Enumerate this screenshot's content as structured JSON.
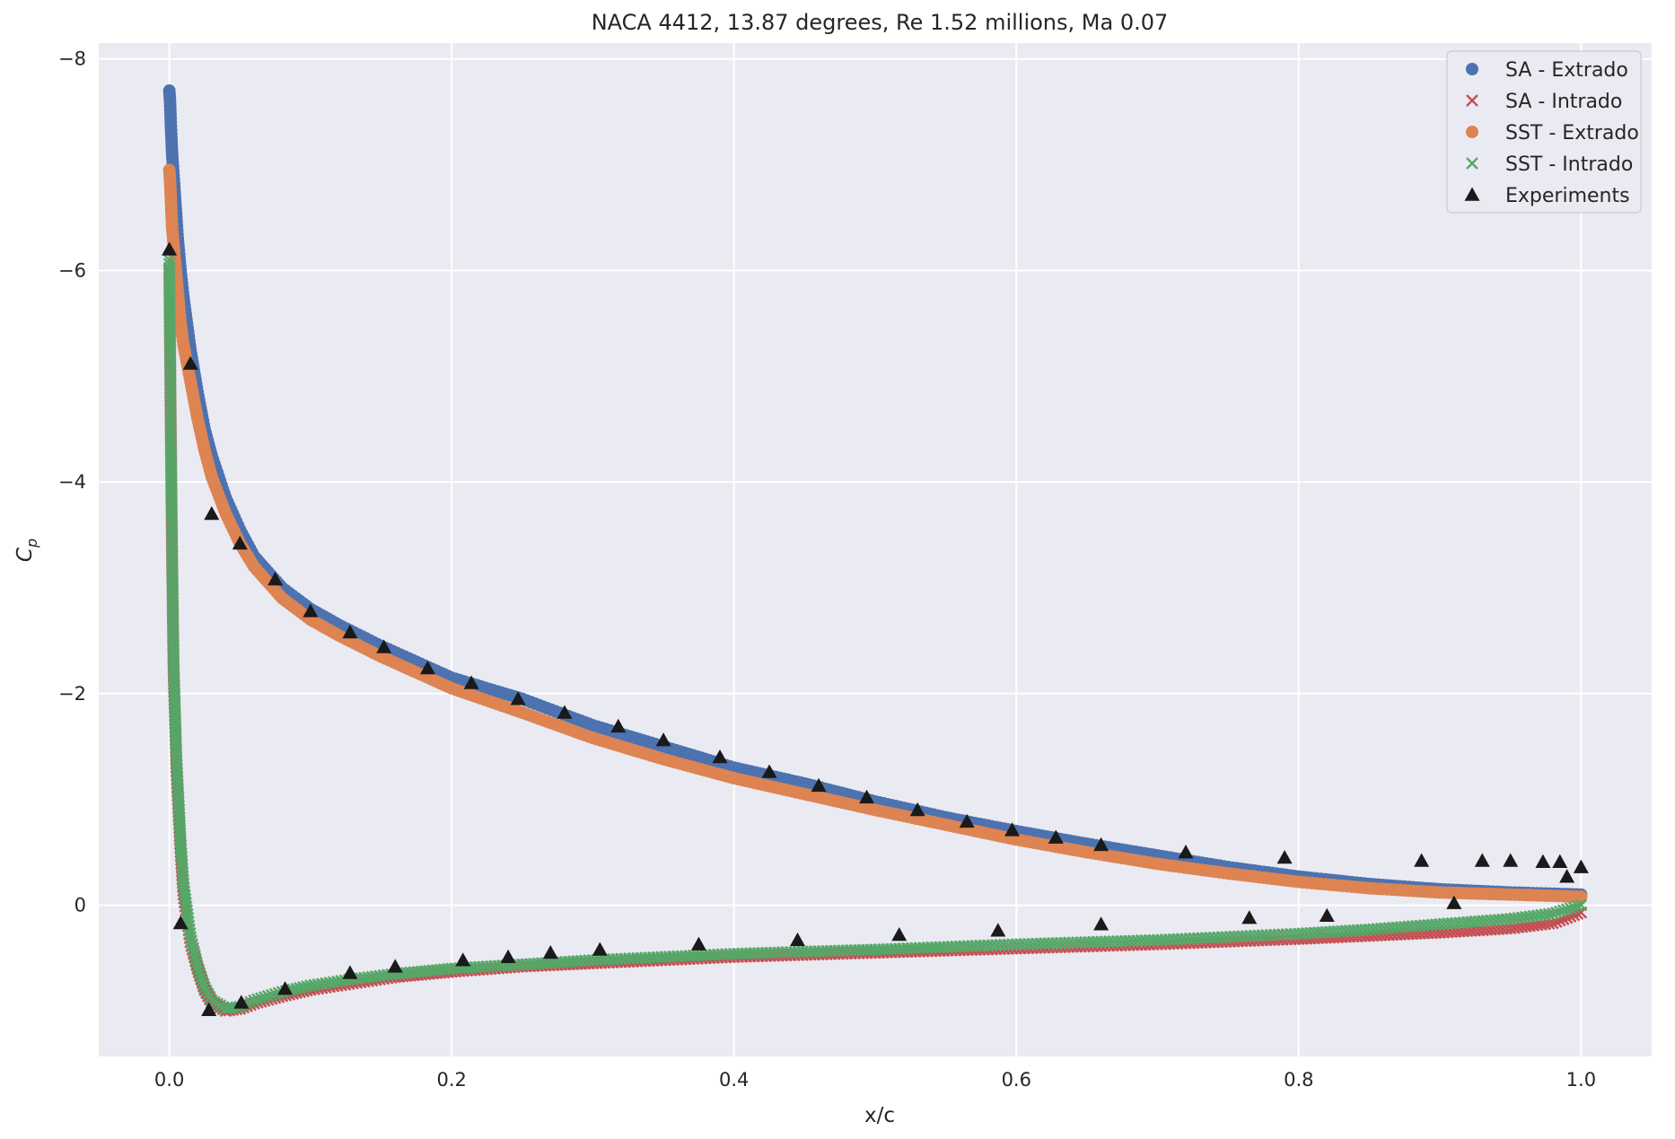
{
  "chart_data": {
    "type": "scatter",
    "title": "NACA 4412, 13.87 degrees, Re 1.52 millions, Ma 0.07",
    "xlabel": "x/c",
    "ylabel_base": "C",
    "ylabel_sub": "p",
    "xlim": [
      -0.05,
      1.05
    ],
    "ylim": [
      1.43,
      -8.15
    ],
    "y_inverted": true,
    "grid": true,
    "legend_position": "top-right",
    "x_ticks": [
      0.0,
      0.2,
      0.4,
      0.6,
      0.8,
      1.0
    ],
    "x_tick_labels": [
      "0.0",
      "0.2",
      "0.4",
      "0.6",
      "0.8",
      "1.0"
    ],
    "y_ticks": [
      -8,
      -6,
      -4,
      -2,
      0
    ],
    "y_tick_labels": [
      "−8",
      "−6",
      "−4",
      "−2",
      "0"
    ],
    "colors": {
      "background": "#eaeaf2",
      "grid": "#ffffff",
      "sa_extrado": "#4c72b0",
      "sa_intrado": "#c44e52",
      "sst_extrado": "#dd8452",
      "sst_intrado": "#55a868",
      "experiments": "#1a1a1a"
    },
    "series": [
      {
        "name": "SA - Extrado",
        "marker": "circle",
        "color": "#4c72b0",
        "points": [
          [
            0.0,
            -7.7
          ],
          [
            0.0005,
            -7.6
          ],
          [
            0.001,
            -7.4
          ],
          [
            0.002,
            -7.1
          ],
          [
            0.004,
            -6.7
          ],
          [
            0.006,
            -6.3
          ],
          [
            0.008,
            -6.0
          ],
          [
            0.01,
            -5.75
          ],
          [
            0.015,
            -5.25
          ],
          [
            0.02,
            -4.85
          ],
          [
            0.025,
            -4.5
          ],
          [
            0.03,
            -4.25
          ],
          [
            0.04,
            -3.85
          ],
          [
            0.05,
            -3.55
          ],
          [
            0.06,
            -3.3
          ],
          [
            0.07,
            -3.15
          ],
          [
            0.08,
            -3.0
          ],
          [
            0.1,
            -2.8
          ],
          [
            0.12,
            -2.65
          ],
          [
            0.15,
            -2.45
          ],
          [
            0.2,
            -2.15
          ],
          [
            0.25,
            -1.95
          ],
          [
            0.3,
            -1.7
          ],
          [
            0.35,
            -1.5
          ],
          [
            0.4,
            -1.3
          ],
          [
            0.45,
            -1.15
          ],
          [
            0.5,
            -0.98
          ],
          [
            0.55,
            -0.83
          ],
          [
            0.6,
            -0.7
          ],
          [
            0.65,
            -0.58
          ],
          [
            0.7,
            -0.47
          ],
          [
            0.75,
            -0.36
          ],
          [
            0.8,
            -0.27
          ],
          [
            0.85,
            -0.2
          ],
          [
            0.9,
            -0.15
          ],
          [
            0.95,
            -0.12
          ],
          [
            1.0,
            -0.1
          ]
        ]
      },
      {
        "name": "SA - Intrado",
        "marker": "x",
        "color": "#c44e52",
        "points": [
          [
            0.0,
            -6.0
          ],
          [
            0.001,
            -4.5
          ],
          [
            0.002,
            -3.2
          ],
          [
            0.003,
            -2.2
          ],
          [
            0.005,
            -1.3
          ],
          [
            0.008,
            -0.5
          ],
          [
            0.01,
            -0.1
          ],
          [
            0.015,
            0.35
          ],
          [
            0.02,
            0.6
          ],
          [
            0.025,
            0.8
          ],
          [
            0.03,
            0.92
          ],
          [
            0.04,
            1.0
          ],
          [
            0.05,
            0.98
          ],
          [
            0.06,
            0.93
          ],
          [
            0.08,
            0.86
          ],
          [
            0.1,
            0.8
          ],
          [
            0.13,
            0.74
          ],
          [
            0.16,
            0.68
          ],
          [
            0.2,
            0.63
          ],
          [
            0.25,
            0.58
          ],
          [
            0.3,
            0.55
          ],
          [
            0.4,
            0.49
          ],
          [
            0.5,
            0.45
          ],
          [
            0.6,
            0.41
          ],
          [
            0.7,
            0.37
          ],
          [
            0.8,
            0.32
          ],
          [
            0.85,
            0.29
          ],
          [
            0.9,
            0.26
          ],
          [
            0.95,
            0.22
          ],
          [
            0.98,
            0.17
          ],
          [
            1.0,
            0.07
          ]
        ]
      },
      {
        "name": "SST - Extrado",
        "marker": "circle",
        "color": "#dd8452",
        "points": [
          [
            0.0,
            -6.95
          ],
          [
            0.0005,
            -6.85
          ],
          [
            0.001,
            -6.7
          ],
          [
            0.002,
            -6.4
          ],
          [
            0.004,
            -6.1
          ],
          [
            0.006,
            -5.8
          ],
          [
            0.008,
            -5.5
          ],
          [
            0.01,
            -5.3
          ],
          [
            0.015,
            -4.95
          ],
          [
            0.02,
            -4.6
          ],
          [
            0.025,
            -4.3
          ],
          [
            0.03,
            -4.05
          ],
          [
            0.04,
            -3.7
          ],
          [
            0.05,
            -3.42
          ],
          [
            0.06,
            -3.2
          ],
          [
            0.07,
            -3.05
          ],
          [
            0.08,
            -2.9
          ],
          [
            0.1,
            -2.7
          ],
          [
            0.12,
            -2.55
          ],
          [
            0.15,
            -2.35
          ],
          [
            0.2,
            -2.05
          ],
          [
            0.25,
            -1.82
          ],
          [
            0.3,
            -1.58
          ],
          [
            0.35,
            -1.38
          ],
          [
            0.4,
            -1.2
          ],
          [
            0.45,
            -1.05
          ],
          [
            0.5,
            -0.9
          ],
          [
            0.55,
            -0.76
          ],
          [
            0.6,
            -0.62
          ],
          [
            0.65,
            -0.5
          ],
          [
            0.7,
            -0.39
          ],
          [
            0.75,
            -0.3
          ],
          [
            0.8,
            -0.22
          ],
          [
            0.85,
            -0.16
          ],
          [
            0.9,
            -0.12
          ],
          [
            0.95,
            -0.1
          ],
          [
            1.0,
            -0.08
          ]
        ]
      },
      {
        "name": "SST - Intrado",
        "marker": "x",
        "color": "#55a868",
        "points": [
          [
            0.0,
            -6.1
          ],
          [
            0.001,
            -4.6
          ],
          [
            0.002,
            -3.3
          ],
          [
            0.003,
            -2.3
          ],
          [
            0.005,
            -1.4
          ],
          [
            0.008,
            -0.6
          ],
          [
            0.01,
            -0.2
          ],
          [
            0.015,
            0.3
          ],
          [
            0.02,
            0.58
          ],
          [
            0.025,
            0.78
          ],
          [
            0.03,
            0.9
          ],
          [
            0.04,
            0.98
          ],
          [
            0.05,
            0.96
          ],
          [
            0.06,
            0.9
          ],
          [
            0.08,
            0.82
          ],
          [
            0.1,
            0.76
          ],
          [
            0.13,
            0.7
          ],
          [
            0.16,
            0.65
          ],
          [
            0.2,
            0.6
          ],
          [
            0.25,
            0.56
          ],
          [
            0.3,
            0.52
          ],
          [
            0.4,
            0.46
          ],
          [
            0.5,
            0.42
          ],
          [
            0.6,
            0.37
          ],
          [
            0.7,
            0.33
          ],
          [
            0.8,
            0.27
          ],
          [
            0.85,
            0.23
          ],
          [
            0.9,
            0.18
          ],
          [
            0.95,
            0.13
          ],
          [
            0.98,
            0.08
          ],
          [
            1.0,
            0.0
          ]
        ]
      },
      {
        "name": "Experiments",
        "marker": "triangle",
        "color": "#1a1a1a",
        "points": [
          [
            0.0,
            -6.2
          ],
          [
            0.015,
            -5.12
          ],
          [
            0.03,
            -3.7
          ],
          [
            0.05,
            -3.42
          ],
          [
            0.075,
            -3.08
          ],
          [
            0.1,
            -2.78
          ],
          [
            0.128,
            -2.58
          ],
          [
            0.152,
            -2.44
          ],
          [
            0.183,
            -2.24
          ],
          [
            0.214,
            -2.1
          ],
          [
            0.247,
            -1.95
          ],
          [
            0.28,
            -1.82
          ],
          [
            0.318,
            -1.69
          ],
          [
            0.35,
            -1.56
          ],
          [
            0.39,
            -1.4
          ],
          [
            0.425,
            -1.26
          ],
          [
            0.46,
            -1.13
          ],
          [
            0.494,
            -1.02
          ],
          [
            0.53,
            -0.9
          ],
          [
            0.565,
            -0.79
          ],
          [
            0.597,
            -0.71
          ],
          [
            0.628,
            -0.64
          ],
          [
            0.66,
            -0.57
          ],
          [
            0.72,
            -0.5
          ],
          [
            0.79,
            -0.45
          ],
          [
            0.887,
            -0.42
          ],
          [
            0.93,
            -0.42
          ],
          [
            0.95,
            -0.42
          ],
          [
            0.973,
            -0.41
          ],
          [
            0.985,
            -0.41
          ],
          [
            0.99,
            -0.27
          ],
          [
            1.0,
            -0.36
          ],
          [
            0.91,
            -0.02
          ],
          [
            0.82,
            0.1
          ],
          [
            0.765,
            0.12
          ],
          [
            0.66,
            0.18
          ],
          [
            0.587,
            0.24
          ],
          [
            0.517,
            0.28
          ],
          [
            0.445,
            0.33
          ],
          [
            0.375,
            0.37
          ],
          [
            0.305,
            0.42
          ],
          [
            0.27,
            0.45
          ],
          [
            0.24,
            0.49
          ],
          [
            0.208,
            0.52
          ],
          [
            0.16,
            0.58
          ],
          [
            0.128,
            0.64
          ],
          [
            0.082,
            0.79
          ],
          [
            0.051,
            0.92
          ],
          [
            0.028,
            0.99
          ],
          [
            0.008,
            0.17
          ]
        ]
      }
    ]
  }
}
